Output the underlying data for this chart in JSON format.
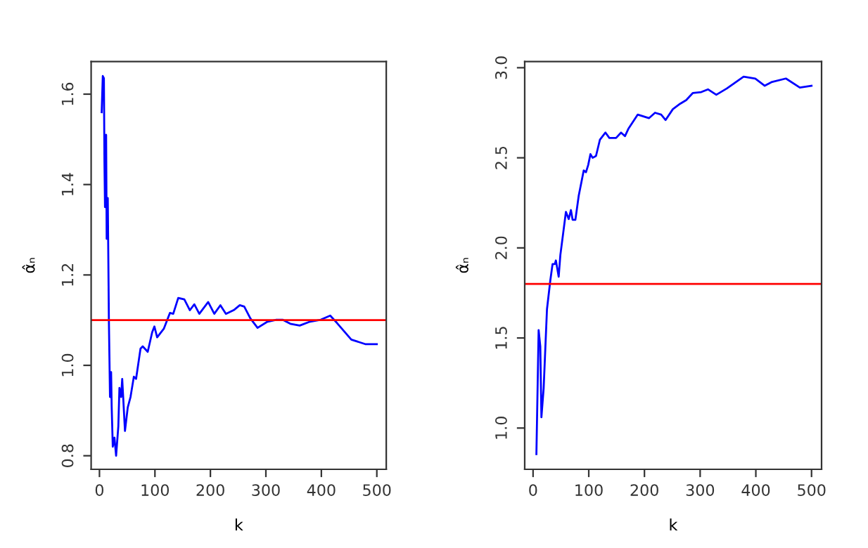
{
  "chart_data": [
    {
      "type": "line",
      "xlabel": "k",
      "ylabel": "α̂ₙ",
      "xlim": [
        -15,
        517
      ],
      "ylim": [
        0.77,
        1.672
      ],
      "xticks": [
        0,
        100,
        200,
        300,
        400,
        500
      ],
      "yticks": [
        0.8,
        {
          "value": 1.0,
          "label": "1.0"
        },
        1.2,
        1.4,
        1.6
      ],
      "grid": false,
      "legend": false,
      "series": [
        {
          "color": "#0000ff",
          "x": [
            4,
            6,
            8,
            9,
            10,
            12,
            13,
            15,
            17,
            19,
            21,
            22,
            24,
            27,
            30,
            34,
            36,
            39,
            41,
            46,
            51,
            56,
            62,
            66,
            74,
            78,
            87,
            95,
            99,
            104,
            116,
            127,
            133,
            142,
            153,
            163,
            171,
            180,
            196,
            207,
            218,
            228,
            243,
            253,
            261,
            272,
            285,
            302,
            319,
            330,
            344,
            361,
            378,
            399,
            416,
            428,
            454,
            479,
            500
          ],
          "values": [
            1.56,
            1.64,
            1.635,
            1.45,
            1.35,
            1.51,
            1.28,
            1.37,
            1.1,
            0.93,
            0.985,
            0.91,
            0.82,
            0.84,
            0.8,
            0.865,
            0.95,
            0.93,
            0.97,
            0.855,
            0.907,
            0.93,
            0.975,
            0.97,
            1.037,
            1.042,
            1.03,
            1.073,
            1.086,
            1.062,
            1.081,
            1.116,
            1.114,
            1.149,
            1.146,
            1.122,
            1.135,
            1.114,
            1.14,
            1.114,
            1.133,
            1.114,
            1.123,
            1.133,
            1.13,
            1.104,
            1.083,
            1.096,
            1.101,
            1.101,
            1.092,
            1.088,
            1.096,
            1.101,
            1.11,
            1.094,
            1.057,
            1.047,
            1.047
          ]
        }
      ],
      "ref_lines": [
        {
          "axis": "y",
          "value": 1.1,
          "color": "#ff0000"
        }
      ]
    },
    {
      "type": "line",
      "xlabel": "k",
      "ylabel": "α̂ₙ",
      "xlim": [
        -15,
        518
      ],
      "ylim": [
        0.771,
        3.034
      ],
      "xticks": [
        0,
        100,
        200,
        300,
        400,
        500
      ],
      "yticks": [
        {
          "value": 1.0,
          "label": "1.0"
        },
        1.5,
        {
          "value": 2.0,
          "label": "2.0"
        },
        2.5,
        {
          "value": 3.0,
          "label": "3.0"
        }
      ],
      "grid": false,
      "legend": false,
      "series": [
        {
          "color": "#0000ff",
          "x": [
            6,
            10,
            13,
            15,
            19,
            25,
            31,
            35,
            39,
            41,
            46,
            49,
            54,
            59,
            64,
            68,
            71,
            76,
            82,
            91,
            95,
            99,
            103,
            107,
            113,
            120,
            130,
            137,
            149,
            158,
            165,
            171,
            188,
            208,
            219,
            230,
            238,
            251,
            264,
            275,
            287,
            302,
            314,
            329,
            348,
            378,
            399,
            416,
            428,
            454,
            479,
            500
          ],
          "values": [
            0.855,
            1.544,
            1.453,
            1.06,
            1.22,
            1.66,
            1.82,
            1.91,
            1.91,
            1.93,
            1.84,
            1.96,
            2.08,
            2.2,
            2.16,
            2.21,
            2.156,
            2.156,
            2.29,
            2.43,
            2.42,
            2.46,
            2.52,
            2.5,
            2.51,
            2.6,
            2.64,
            2.61,
            2.61,
            2.64,
            2.62,
            2.66,
            2.74,
            2.72,
            2.75,
            2.74,
            2.71,
            2.77,
            2.8,
            2.82,
            2.86,
            2.865,
            2.88,
            2.85,
            2.885,
            2.95,
            2.94,
            2.9,
            2.92,
            2.94,
            2.89,
            2.9
          ]
        }
      ],
      "ref_lines": [
        {
          "axis": "y",
          "value": 1.8,
          "color": "#ff0000"
        }
      ]
    }
  ]
}
